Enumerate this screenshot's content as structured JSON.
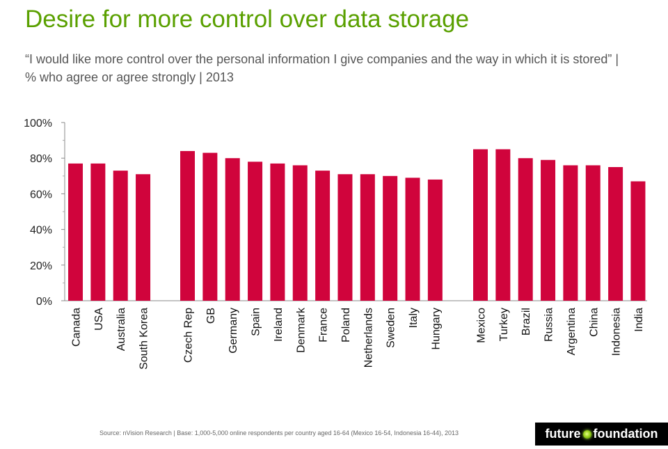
{
  "title": "Desire for more control over data storage",
  "subtitle": "“I would like more control over the personal information I give companies and the way in which it is stored” | % who agree or agree strongly | 2013",
  "source": "Source: nVision Research | Base: 1,000-5,000 online respondents per country aged 16-64 (Mexico 16-54, Indonesia 16-44), 2013",
  "logo": {
    "left": "future",
    "right": "foundation"
  },
  "colors": {
    "title": "#5aa000",
    "bar": "#d0043c"
  },
  "chart_data": {
    "type": "bar",
    "ylim": [
      0,
      100
    ],
    "yticks": [
      "0%",
      "20%",
      "40%",
      "60%",
      "80%",
      "100%"
    ],
    "groups": [
      {
        "categories": [
          "Canada",
          "USA",
          "Australia",
          "South Korea"
        ],
        "values": [
          77,
          77,
          73,
          71
        ]
      },
      {
        "categories": [
          "Czech Rep",
          "GB",
          "Germany",
          "Spain",
          "Ireland",
          "Denmark",
          "France",
          "Poland",
          "Netherlands",
          "Sweden",
          "Italy",
          "Hungary"
        ],
        "values": [
          84,
          83,
          80,
          78,
          77,
          76,
          73,
          71,
          71,
          70,
          69,
          68
        ]
      },
      {
        "categories": [
          "Mexico",
          "Turkey",
          "Brazil",
          "Russia",
          "Argentina",
          "China",
          "Indonesia",
          "India"
        ],
        "values": [
          85,
          85,
          80,
          79,
          76,
          76,
          75,
          67
        ]
      }
    ],
    "legend": "none",
    "grid": false
  }
}
